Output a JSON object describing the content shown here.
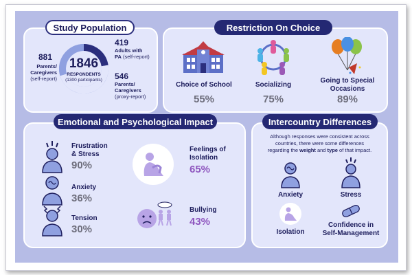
{
  "study_population": {
    "title": "Study Population",
    "total": "1846",
    "total_label": "RESPONDENTS",
    "total_sub": "(1300 participants)",
    "left_group": {
      "value": "881",
      "label1": "Parents/",
      "label2": "Caregivers",
      "note": "(self-report)"
    },
    "right_top_group": {
      "value": "419",
      "label1": "Adults with",
      "label2": "PA",
      "note": "(self-report)"
    },
    "right_bottom_group": {
      "value": "546",
      "label1": "Parents/",
      "label2": "Caregivers",
      "note": "(proxy-report)"
    },
    "donut_segments": [
      419,
      881,
      546
    ]
  },
  "restriction": {
    "title": "Restriction On Choice",
    "items": [
      {
        "label": "Choice of School",
        "value": "55%",
        "icon": "school-icon"
      },
      {
        "label": "Socializing",
        "value": "75%",
        "icon": "people-circle-icon"
      },
      {
        "label1": "Going to Special",
        "label2": "Occasions",
        "value": "89%",
        "icon": "balloons-icon"
      }
    ]
  },
  "emotional": {
    "title": "Emotional and Psychological Impact",
    "items": [
      {
        "label1": "Frustration",
        "label2": "& Stress",
        "value": "90%",
        "icon": "stressed-person-icon"
      },
      {
        "label1": "Anxiety",
        "value": "36%",
        "icon": "anxious-person-icon"
      },
      {
        "label1": "Tension",
        "value": "30%",
        "icon": "tense-person-icon"
      },
      {
        "label1": "Feelings of",
        "label2": "Isolation",
        "value": "65%",
        "icon": "isolated-person-icon"
      },
      {
        "label1": "Bullying",
        "value": "43%",
        "icon": "bullying-icon"
      }
    ]
  },
  "intercountry": {
    "title": "Intercountry Differences",
    "desc_line1": "Although responses were consistent across",
    "desc_line2": "countries, there were some differences",
    "desc_line3_pre": "regarding the ",
    "desc_bold1": "weight",
    "desc_mid": " and ",
    "desc_bold2": "type",
    "desc_post": " of that impact.",
    "items": [
      {
        "label": "Anxiety",
        "icon": "anxiety-icon"
      },
      {
        "label": "Stress",
        "icon": "stress-icon"
      },
      {
        "label": "Isolation",
        "icon": "isolation-icon"
      },
      {
        "label1": "Confidence in",
        "label2": "Self-Management",
        "icon": "pills-icon"
      }
    ]
  },
  "colors": {
    "navy": "#242873",
    "panel": "#e3e6fb",
    "background": "#b6bce6",
    "grey_value": "#6e6e7c",
    "purple_value": "#8f57bf",
    "icon_blue": "#5c6fc7"
  }
}
